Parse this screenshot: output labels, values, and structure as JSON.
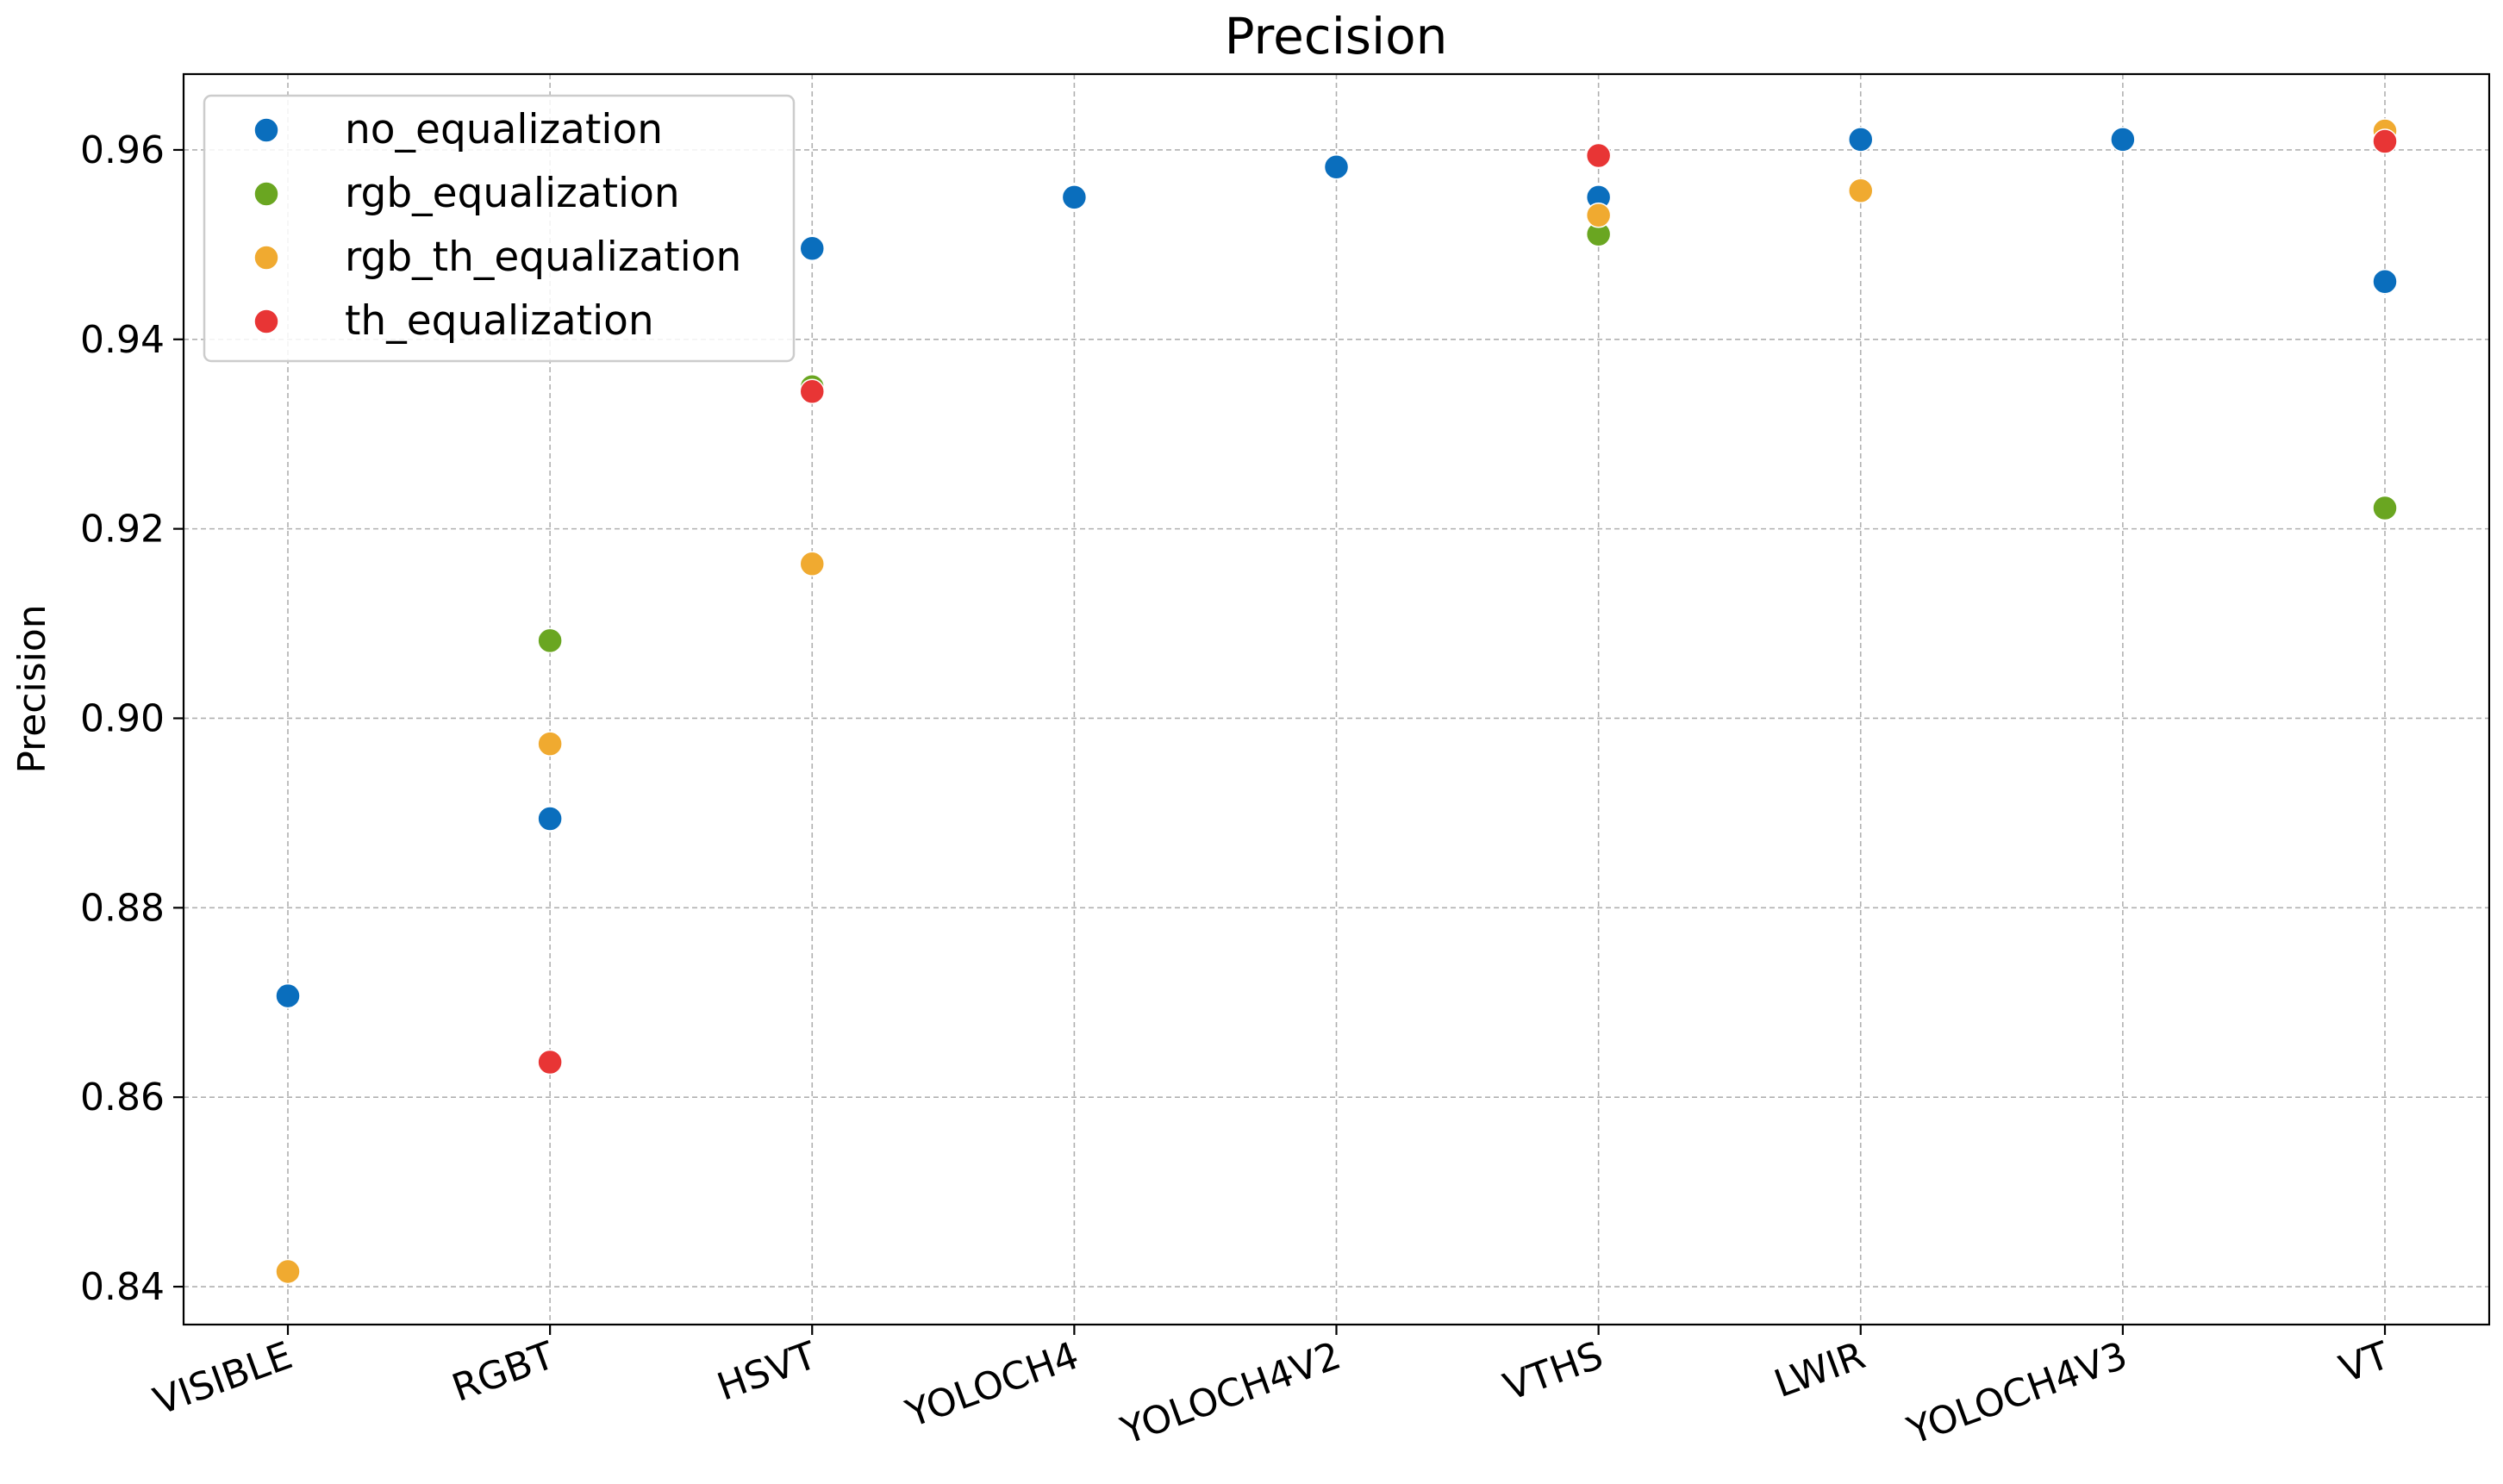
{
  "chart_data": {
    "type": "scatter",
    "title": "Precision",
    "xlabel": "",
    "ylabel": "Precision",
    "ylim": [
      0.836,
      0.968
    ],
    "yticks": [
      0.84,
      0.86,
      0.88,
      0.9,
      0.92,
      0.94,
      0.96
    ],
    "ytick_labels": [
      "0.84",
      "0.86",
      "0.88",
      "0.90",
      "0.92",
      "0.94",
      "0.96"
    ],
    "categories": [
      "VISIBLE",
      "RGBT",
      "HSVT",
      "YOLOCH4",
      "YOLOCH4V2",
      "VTHS",
      "LWIR",
      "YOLOCH4V3",
      "VT"
    ],
    "grid": true,
    "legend_position": "top-left",
    "series": [
      {
        "name": "no_equalization",
        "color": "#0a6ebd",
        "values": [
          0.8707,
          0.8894,
          0.9496,
          0.955,
          0.9582,
          0.955,
          0.9611,
          0.9611,
          0.9461
        ]
      },
      {
        "name": "rgb_equalization",
        "color": "#6aa621",
        "values": [
          null,
          0.9082,
          0.935,
          null,
          null,
          0.9511,
          null,
          null,
          0.9222
        ]
      },
      {
        "name": "rgb_th_equalization",
        "color": "#f0aa30",
        "values": [
          0.8416,
          0.8973,
          0.9163,
          null,
          null,
          0.9531,
          0.9557,
          null,
          0.962
        ]
      },
      {
        "name": "th_equalization",
        "color": "#e83535",
        "values": [
          null,
          0.8637,
          0.9345,
          null,
          null,
          0.9594,
          null,
          null,
          0.9609
        ]
      }
    ]
  }
}
